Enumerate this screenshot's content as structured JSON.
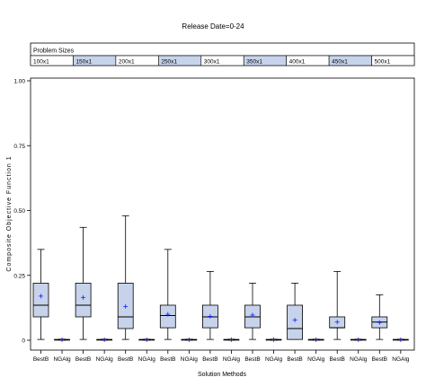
{
  "chart_data": {
    "type": "boxplot",
    "title": "Release Date=0-24",
    "panel_header": "Problem Sizes",
    "xlabel": "Solution Methods",
    "ylabel": "Composite Objective Function 1",
    "ylim": [
      0,
      1
    ],
    "yticks": [
      0,
      0.25,
      0.5,
      0.75,
      1
    ],
    "ytick_labels": [
      "0",
      "0.25",
      "0.50",
      "0.75",
      "1.00"
    ],
    "groups": [
      "100x1",
      "150x1",
      "200x1",
      "250x1",
      "300x1",
      "350x1",
      "400x1",
      "450x1",
      "500x1"
    ],
    "group_shading": [
      false,
      true,
      false,
      true,
      false,
      true,
      false,
      true,
      false
    ],
    "methods": [
      "BestB",
      "NGAlg"
    ],
    "boxes": [
      {
        "group": "100x1",
        "method": "BestB",
        "min": 0.003,
        "q1": 0.09,
        "median": 0.135,
        "q3": 0.22,
        "max": 0.35,
        "mean": 0.17
      },
      {
        "group": "100x1",
        "method": "NGAlg",
        "min": 0.0,
        "q1": 0.001,
        "median": 0.002,
        "q3": 0.003,
        "max": 0.004,
        "mean": 0.002
      },
      {
        "group": "150x1",
        "method": "BestB",
        "min": 0.003,
        "q1": 0.09,
        "median": 0.135,
        "q3": 0.22,
        "max": 0.435,
        "mean": 0.165
      },
      {
        "group": "150x1",
        "method": "NGAlg",
        "min": 0.0,
        "q1": 0.001,
        "median": 0.002,
        "q3": 0.003,
        "max": 0.004,
        "mean": 0.002
      },
      {
        "group": "200x1",
        "method": "BestB",
        "min": 0.003,
        "q1": 0.045,
        "median": 0.09,
        "q3": 0.22,
        "max": 0.48,
        "mean": 0.13
      },
      {
        "group": "200x1",
        "method": "NGAlg",
        "min": 0.0,
        "q1": 0.001,
        "median": 0.002,
        "q3": 0.003,
        "max": 0.004,
        "mean": 0.002
      },
      {
        "group": "250x1",
        "method": "BestB",
        "min": 0.003,
        "q1": 0.048,
        "median": 0.095,
        "q3": 0.135,
        "max": 0.35,
        "mean": 0.1
      },
      {
        "group": "250x1",
        "method": "NGAlg",
        "min": 0.0,
        "q1": 0.001,
        "median": 0.002,
        "q3": 0.003,
        "max": 0.004,
        "mean": 0.002
      },
      {
        "group": "300x1",
        "method": "BestB",
        "min": 0.003,
        "q1": 0.048,
        "median": 0.09,
        "q3": 0.135,
        "max": 0.265,
        "mean": 0.092
      },
      {
        "group": "300x1",
        "method": "NGAlg",
        "min": 0.0,
        "q1": 0.001,
        "median": 0.002,
        "q3": 0.003,
        "max": 0.004,
        "mean": 0.002
      },
      {
        "group": "350x1",
        "method": "BestB",
        "min": 0.003,
        "q1": 0.048,
        "median": 0.09,
        "q3": 0.135,
        "max": 0.22,
        "mean": 0.097
      },
      {
        "group": "350x1",
        "method": "NGAlg",
        "min": 0.0,
        "q1": 0.001,
        "median": 0.002,
        "q3": 0.003,
        "max": 0.004,
        "mean": 0.002
      },
      {
        "group": "400x1",
        "method": "BestB",
        "min": 0.003,
        "q1": 0.003,
        "median": 0.045,
        "q3": 0.135,
        "max": 0.22,
        "mean": 0.078
      },
      {
        "group": "400x1",
        "method": "NGAlg",
        "min": 0.0,
        "q1": 0.001,
        "median": 0.002,
        "q3": 0.003,
        "max": 0.004,
        "mean": 0.002
      },
      {
        "group": "450x1",
        "method": "BestB",
        "min": 0.003,
        "q1": 0.048,
        "median": 0.048,
        "q3": 0.09,
        "max": 0.265,
        "mean": 0.07
      },
      {
        "group": "450x1",
        "method": "NGAlg",
        "min": 0.0,
        "q1": 0.001,
        "median": 0.002,
        "q3": 0.003,
        "max": 0.004,
        "mean": 0.002
      },
      {
        "group": "500x1",
        "method": "BestB",
        "min": 0.003,
        "q1": 0.048,
        "median": 0.07,
        "q3": 0.09,
        "max": 0.175,
        "mean": 0.068
      },
      {
        "group": "500x1",
        "method": "NGAlg",
        "min": 0.0,
        "q1": 0.001,
        "median": 0.002,
        "q3": 0.003,
        "max": 0.004,
        "mean": 0.002
      }
    ],
    "colors": {
      "box_fill": "#c6d3ea",
      "header_shade": "#c6d3ea",
      "mean_marker": "#1a1aff",
      "line": "#000000"
    },
    "legend": "none",
    "grid": false
  }
}
